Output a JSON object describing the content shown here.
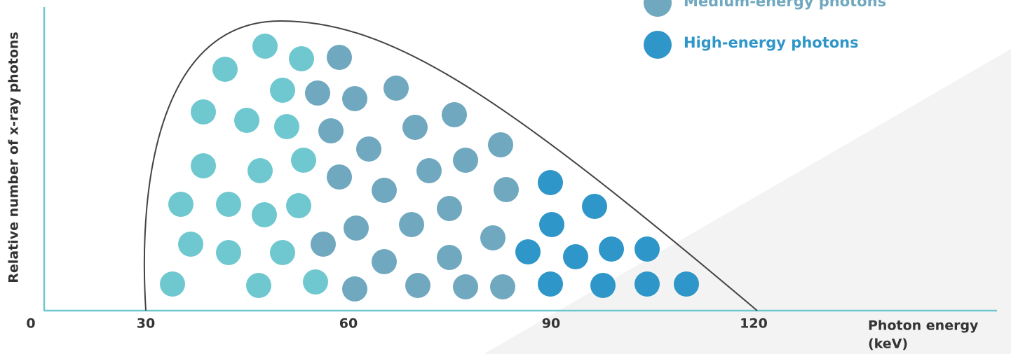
{
  "diagram": {
    "y_axis_label": "Relative number of x-ray photons",
    "x_axis_label": [
      "Photon energy",
      "(keV)"
    ],
    "ticks": [
      "0",
      "30",
      "60",
      "90",
      "120"
    ],
    "legend": [
      "Medium-energy photons",
      "High-energy photons"
    ]
  }
}
